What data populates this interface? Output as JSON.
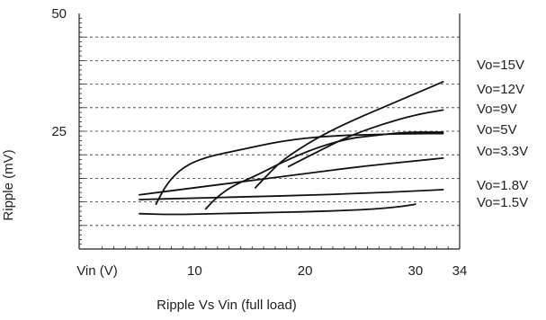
{
  "chart_data": {
    "type": "line",
    "title": "",
    "caption": "Ripple Vs Vin (full load)",
    "xlabel": "Vin (V)",
    "ylabel": "Ripple (mV)",
    "xlim": [
      0,
      34
    ],
    "ylim": [
      0,
      50
    ],
    "x_ticks": [
      10,
      20,
      30,
      34
    ],
    "x_tick_labels": [
      "10",
      "20",
      "30",
      "34"
    ],
    "y_ticks": [
      25,
      50
    ],
    "y_tick_labels": [
      "25",
      "50"
    ],
    "grid": "horizontal dashed",
    "legend": "right",
    "series": [
      {
        "name": "Vo=15V",
        "points": [
          [
            6.5,
            9.5
          ],
          [
            7.5,
            14
          ],
          [
            9,
            17.5
          ],
          [
            11,
            19.5
          ],
          [
            14,
            21
          ],
          [
            18,
            23
          ],
          [
            22,
            24
          ],
          [
            26,
            24.3
          ],
          [
            30,
            24.5
          ],
          [
            32.5,
            24.5
          ]
        ]
      },
      {
        "name": "Vo=12V",
        "points": [
          [
            15.5,
            13
          ],
          [
            16.5,
            15.5
          ],
          [
            18,
            19
          ],
          [
            21,
            23.5
          ],
          [
            24,
            27
          ],
          [
            27,
            30
          ],
          [
            30,
            33
          ],
          [
            32.5,
            35.5
          ]
        ]
      },
      {
        "name": "Vo=9V",
        "points": [
          [
            18.5,
            17.5
          ],
          [
            21,
            20.5
          ],
          [
            24,
            24
          ],
          [
            27,
            26.5
          ],
          [
            30,
            28.5
          ],
          [
            32.5,
            29.5
          ]
        ]
      },
      {
        "name": "Vo=5V",
        "points": [
          [
            11,
            8.5
          ],
          [
            12,
            11
          ],
          [
            13.5,
            13.5
          ],
          [
            15.5,
            15.5
          ],
          [
            18,
            18.5
          ],
          [
            21,
            21.5
          ],
          [
            24,
            23.5
          ],
          [
            26,
            24
          ],
          [
            29,
            24.8
          ],
          [
            32.5,
            24.8
          ]
        ]
      },
      {
        "name": "Vo=3.3V",
        "points": [
          [
            5,
            11.5
          ],
          [
            10,
            13
          ],
          [
            15,
            14.5
          ],
          [
            20,
            16
          ],
          [
            25,
            17.5
          ],
          [
            30,
            18.7
          ],
          [
            32.5,
            19.3
          ]
        ]
      },
      {
        "name": "Vo=1.8V",
        "points": [
          [
            5,
            10.5
          ],
          [
            10,
            10.8
          ],
          [
            15,
            11.1
          ],
          [
            20,
            11.4
          ],
          [
            25,
            11.8
          ],
          [
            30,
            12.3
          ],
          [
            32.5,
            12.6
          ]
        ]
      },
      {
        "name": "Vo=1.5V",
        "points": [
          [
            5,
            7.5
          ],
          [
            8,
            7.3
          ],
          [
            12,
            7.5
          ],
          [
            16,
            7.7
          ],
          [
            20,
            7.9
          ],
          [
            24,
            8.2
          ],
          [
            27,
            8.6
          ],
          [
            29,
            9.1
          ],
          [
            30,
            9.5
          ]
        ]
      }
    ],
    "colors": {
      "line": "#111111",
      "grid": "#333333",
      "axis": "#222222"
    }
  }
}
